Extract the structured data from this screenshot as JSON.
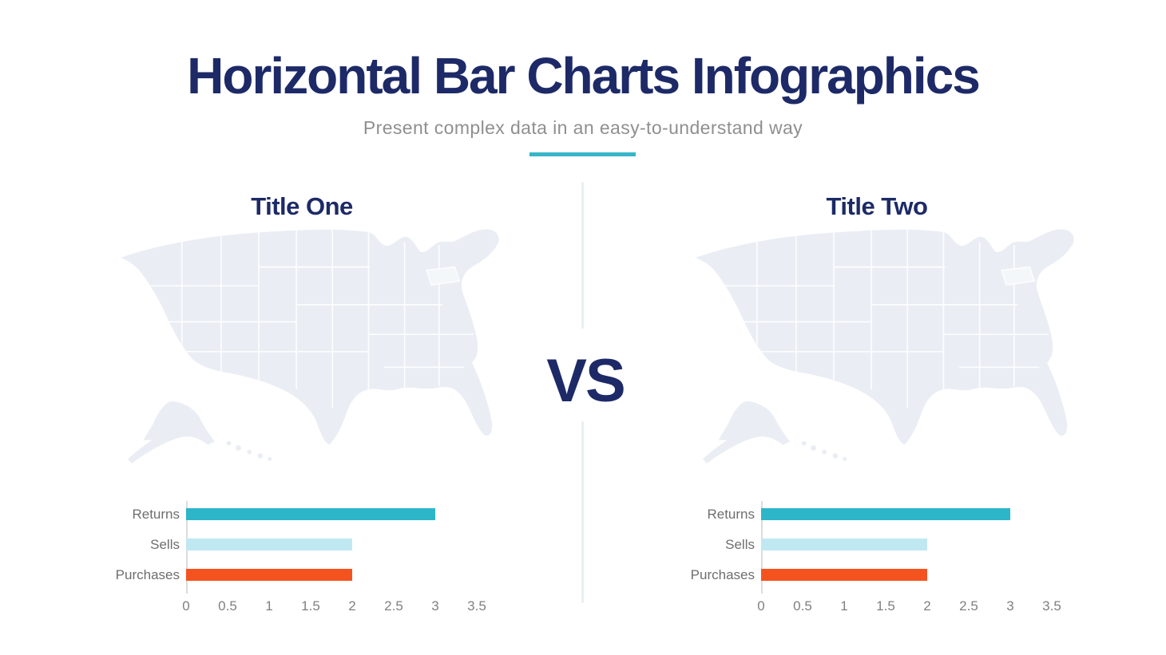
{
  "page": {
    "title": "Horizontal Bar Charts Infographics",
    "subtitle": "Present complex data in an easy-to-understand way",
    "vs_label": "VS",
    "colors": {
      "title_navy": "#1d2a67",
      "subtitle_gray": "#8f8f8f",
      "accent_teal": "#38b5c7",
      "divider_gray": "#e9f0f1",
      "map_fill": "#eaeef4",
      "axis_line": "#dcdcdc",
      "axis_text": "#808080",
      "bar_returns": "#2db5c9",
      "bar_sells": "#bfe8f2",
      "bar_purchases": "#f4531f"
    }
  },
  "panels": [
    {
      "title": "Title One"
    },
    {
      "title": "Title Two"
    }
  ],
  "chart_data": [
    {
      "type": "bar",
      "orientation": "horizontal",
      "title": "Title One",
      "categories": [
        "Returns",
        "Sells",
        "Purchases"
      ],
      "values": [
        3,
        2,
        2
      ],
      "colors": [
        "#2db5c9",
        "#bfe8f2",
        "#f4531f"
      ],
      "xlim": [
        0,
        3.5
      ],
      "xticks": [
        0,
        0.5,
        1,
        1.5,
        2,
        2.5,
        3,
        3.5
      ],
      "xlabel": "",
      "ylabel": "",
      "grid": false,
      "legend": false
    },
    {
      "type": "bar",
      "orientation": "horizontal",
      "title": "Title Two",
      "categories": [
        "Returns",
        "Sells",
        "Purchases"
      ],
      "values": [
        3,
        2,
        2
      ],
      "colors": [
        "#2db5c9",
        "#bfe8f2",
        "#f4531f"
      ],
      "xlim": [
        0,
        3.5
      ],
      "xticks": [
        0,
        0.5,
        1,
        1.5,
        2,
        2.5,
        3,
        3.5
      ],
      "xlabel": "",
      "ylabel": "",
      "grid": false,
      "legend": false
    }
  ]
}
